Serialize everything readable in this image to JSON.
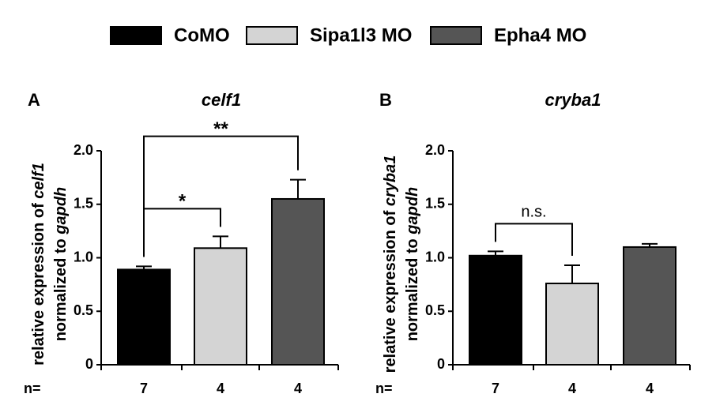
{
  "legend": {
    "names": [
      "CoMO",
      "Sipa1l3 MO",
      "Epha4 MO"
    ],
    "colors": [
      "#000000",
      "#d4d4d4",
      "#555555"
    ]
  },
  "chart_data": [
    {
      "type": "bar",
      "panel": "A",
      "title": "celf1",
      "ylabel": [
        "relative expression of ",
        "celf1",
        "normalized to ",
        "gapdh"
      ],
      "values": [
        0.89,
        1.09,
        1.55
      ],
      "errors": [
        0.03,
        0.11,
        0.18
      ],
      "n_label": "n=",
      "n": [
        7,
        4,
        4
      ],
      "ylim": [
        0,
        2
      ],
      "yticks": [
        0,
        0.5,
        {
          "value": 1,
          "label": "1.0"
        },
        1.5,
        {
          "value": 2,
          "label": "2.0"
        }
      ],
      "brackets": [
        {
          "between": [
            0,
            1
          ],
          "label": "*"
        },
        {
          "between": [
            0,
            2
          ],
          "label": "**"
        }
      ]
    },
    {
      "type": "bar",
      "panel": "B",
      "title": "cryba1",
      "ylabel": [
        "relative expression of ",
        "cryba1",
        "normalized to ",
        "gapdh"
      ],
      "values": [
        1.02,
        0.76,
        1.1
      ],
      "errors": [
        0.04,
        0.17,
        0.03
      ],
      "n_label": "n=",
      "n": [
        7,
        4,
        4
      ],
      "ylim": [
        0,
        2
      ],
      "yticks": [
        0,
        0.5,
        {
          "value": 1,
          "label": "1.0"
        },
        1.5,
        {
          "value": 2,
          "label": "2.0"
        }
      ],
      "brackets": [
        {
          "between": [
            0,
            1
          ],
          "label": "n.s."
        }
      ]
    }
  ]
}
